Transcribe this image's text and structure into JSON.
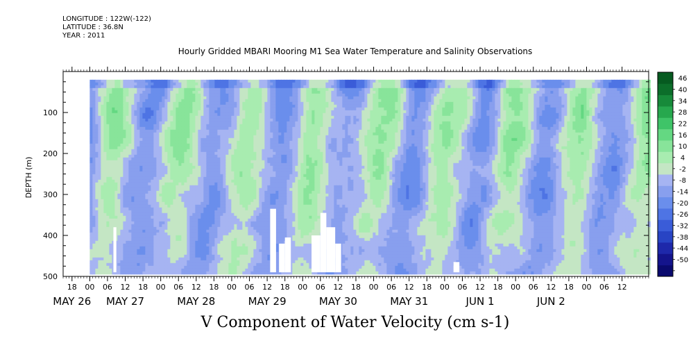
{
  "meta": {
    "longitude": "LONGITUDE : 122W(-122)",
    "latitude": "LATITUDE : 36.8N",
    "year": "YEAR : 2011"
  },
  "title": "Hourly Gridded MBARI Mooring M1 Sea Water Temperature and Salinity Observations",
  "variable_title": "V Component of Water Velocity (cm s-1)",
  "chart_data": {
    "type": "heatmap",
    "title": "Hourly Gridded MBARI Mooring M1 Sea Water Temperature and Salinity Observations",
    "xlabel": "",
    "ylabel": "DEPTH (m)",
    "colorbar_label": "V Component of Water Velocity (cm s-1)",
    "y_axis": {
      "inverted": true,
      "ylim": [
        0,
        500
      ],
      "ticks": [
        100,
        200,
        300,
        400,
        500
      ],
      "tick_labels": [
        "100",
        "200",
        "300",
        "400",
        "500"
      ]
    },
    "x_axis": {
      "start": "2011-05-25 15:00",
      "end": "2011-06-02 21:00",
      "hour_ticks": [
        {
          "time": "2011-05-25 18:00",
          "label": "18"
        },
        {
          "time": "2011-05-26 00:00",
          "label": "00"
        },
        {
          "time": "2011-05-26 06:00",
          "label": "06"
        },
        {
          "time": "2011-05-26 12:00",
          "label": "12"
        },
        {
          "time": "2011-05-26 18:00",
          "label": "18"
        },
        {
          "time": "2011-05-27 00:00",
          "label": "00"
        },
        {
          "time": "2011-05-27 06:00",
          "label": "06"
        },
        {
          "time": "2011-05-27 12:00",
          "label": "12"
        },
        {
          "time": "2011-05-27 18:00",
          "label": "18"
        },
        {
          "time": "2011-05-28 00:00",
          "label": "00"
        },
        {
          "time": "2011-05-28 06:00",
          "label": "06"
        },
        {
          "time": "2011-05-28 12:00",
          "label": "12"
        },
        {
          "time": "2011-05-28 18:00",
          "label": "18"
        },
        {
          "time": "2011-05-29 00:00",
          "label": "00"
        },
        {
          "time": "2011-05-29 06:00",
          "label": "06"
        },
        {
          "time": "2011-05-29 12:00",
          "label": "12"
        },
        {
          "time": "2011-05-29 18:00",
          "label": "18"
        },
        {
          "time": "2011-05-30 00:00",
          "label": "00"
        },
        {
          "time": "2011-05-30 06:00",
          "label": "06"
        },
        {
          "time": "2011-05-30 12:00",
          "label": "12"
        },
        {
          "time": "2011-05-30 18:00",
          "label": "18"
        },
        {
          "time": "2011-05-31 00:00",
          "label": "00"
        },
        {
          "time": "2011-05-31 06:00",
          "label": "06"
        },
        {
          "time": "2011-05-31 12:00",
          "label": "12"
        },
        {
          "time": "2011-05-31 18:00",
          "label": "18"
        },
        {
          "time": "2011-06-01 00:00",
          "label": "00"
        },
        {
          "time": "2011-06-01 06:00",
          "label": "06"
        },
        {
          "time": "2011-06-01 12:00",
          "label": "12"
        },
        {
          "time": "2011-06-01 18:00",
          "label": "18"
        },
        {
          "time": "2011-06-02 00:00",
          "label": "00"
        },
        {
          "time": "2011-06-02 06:00",
          "label": "06"
        },
        {
          "time": "2011-06-02 12:00",
          "label": "12"
        }
      ],
      "day_labels": [
        {
          "time": "2011-05-25 18:00",
          "label": "MAY 26"
        },
        {
          "time": "2011-05-26 12:00",
          "label": "MAY 27"
        },
        {
          "time": "2011-05-27 12:00",
          "label": "MAY 28"
        },
        {
          "time": "2011-05-28 12:00",
          "label": "MAY 29"
        },
        {
          "time": "2011-05-29 12:00",
          "label": "MAY 30"
        },
        {
          "time": "2011-05-30 12:00",
          "label": "MAY 31"
        },
        {
          "time": "2011-05-31 12:00",
          "label": "JUN  1"
        },
        {
          "time": "2011-06-01 12:00",
          "label": "JUN  2"
        }
      ]
    },
    "data_extent": {
      "start": "2011-05-26 00:00",
      "end": "2011-06-02 21:00",
      "min_depth": 20,
      "max_depth": 490
    },
    "missing_regions": [
      {
        "t_start": "2011-05-26 08:00",
        "t_end": "2011-05-26 09:00",
        "depth_top": 380,
        "depth_bottom": 490
      },
      {
        "t_start": "2011-05-28 13:00",
        "t_end": "2011-05-28 15:00",
        "depth_top": 335,
        "depth_bottom": 490
      },
      {
        "t_start": "2011-05-28 16:00",
        "t_end": "2011-05-28 18:00",
        "depth_top": 420,
        "depth_bottom": 490
      },
      {
        "t_start": "2011-05-28 18:00",
        "t_end": "2011-05-28 20:00",
        "depth_top": 405,
        "depth_bottom": 490
      },
      {
        "t_start": "2011-05-29 03:00",
        "t_end": "2011-05-29 06:00",
        "depth_top": 400,
        "depth_bottom": 490
      },
      {
        "t_start": "2011-05-29 06:00",
        "t_end": "2011-05-29 08:00",
        "depth_top": 345,
        "depth_bottom": 490
      },
      {
        "t_start": "2011-05-29 08:00",
        "t_end": "2011-05-29 11:00",
        "depth_top": 380,
        "depth_bottom": 490
      },
      {
        "t_start": "2011-05-29 11:00",
        "t_end": "2011-05-29 13:00",
        "depth_top": 420,
        "depth_bottom": 490
      },
      {
        "t_start": "2011-05-31 03:00",
        "t_end": "2011-05-31 05:00",
        "depth_top": 465,
        "depth_bottom": 490
      }
    ],
    "colorbar": {
      "levels": [
        -50,
        -44,
        -38,
        -32,
        -26,
        -20,
        -14,
        -8,
        -2,
        4,
        10,
        16,
        22,
        28,
        34,
        40,
        46
      ],
      "tick_labels": [
        "46",
        "40",
        "34",
        "28",
        "22",
        "16",
        "10",
        "4",
        "-2",
        "-8",
        "-14",
        "-20",
        "-26",
        "-32",
        "-38",
        "-44",
        "-50"
      ],
      "colors": [
        "#0a0a6e",
        "#14148c",
        "#1e28aa",
        "#2844c4",
        "#3a5cd8",
        "#4e74e4",
        "#6a8eec",
        "#889fee",
        "#a6b4f2",
        "#c4e6c4",
        "#a8ecb0",
        "#88e49a",
        "#64d882",
        "#3fc468",
        "#27a84e",
        "#178a3a",
        "#0c6e2a",
        "#065a20"
      ]
    },
    "grid": false,
    "legend": "right"
  }
}
